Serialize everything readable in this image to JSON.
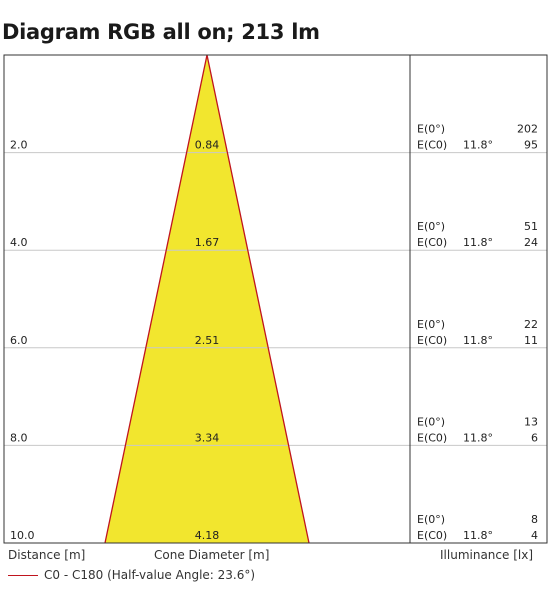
{
  "title": "Diagram RGB all on; 213 lm",
  "chart_data": {
    "type": "cone-diagram",
    "title": "Diagram RGB all on; 213 lm",
    "rows": [
      {
        "distance": "2.0",
        "diameter": "0.84",
        "e0_label": "E(0°)",
        "e0": "202",
        "ec0_label": "E(C0)",
        "angle": "11.8°",
        "ec0": "95"
      },
      {
        "distance": "4.0",
        "diameter": "1.67",
        "e0_label": "E(0°)",
        "e0": "51",
        "ec0_label": "E(C0)",
        "angle": "11.8°",
        "ec0": "24"
      },
      {
        "distance": "6.0",
        "diameter": "2.51",
        "e0_label": "E(0°)",
        "e0": "22",
        "ec0_label": "E(C0)",
        "angle": "11.8°",
        "ec0": "11"
      },
      {
        "distance": "8.0",
        "diameter": "3.34",
        "e0_label": "E(0°)",
        "e0": "13",
        "ec0_label": "E(C0)",
        "angle": "11.8°",
        "ec0": "6"
      },
      {
        "distance": "10.0",
        "diameter": "4.18",
        "e0_label": "E(0°)",
        "e0": "8",
        "ec0_label": "E(C0)",
        "angle": "11.8°",
        "ec0": "4"
      }
    ],
    "max_distance": 10.0,
    "xlabel_left": "Distance [m]",
    "xlabel_center": "Cone Diameter [m]",
    "xlabel_right": "Illuminance [lx]",
    "legend": "C0 - C180 (Half-value Angle: 23.6°)",
    "colors": {
      "cone_fill": "#f2e62e",
      "cone_edge": "#c0141e",
      "grid": "#c8c8c8",
      "frame": "#333333"
    }
  }
}
